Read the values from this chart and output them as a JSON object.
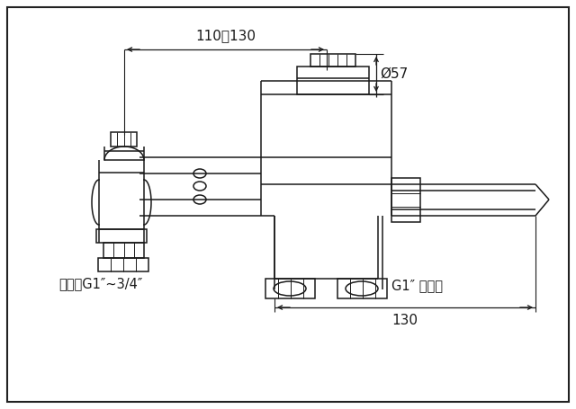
{
  "bg_color": "#ffffff",
  "line_color": "#1a1a1a",
  "lw": 1.1,
  "lw_thick": 1.4,
  "label_jinshui": "进水口G1″~3/4″",
  "label_xiashui": "G1″ 下水口",
  "label_dim1": "110～130",
  "label_dim2": "Ø57",
  "label_dim3": "130",
  "font_size": 10,
  "border_color": "#222222"
}
